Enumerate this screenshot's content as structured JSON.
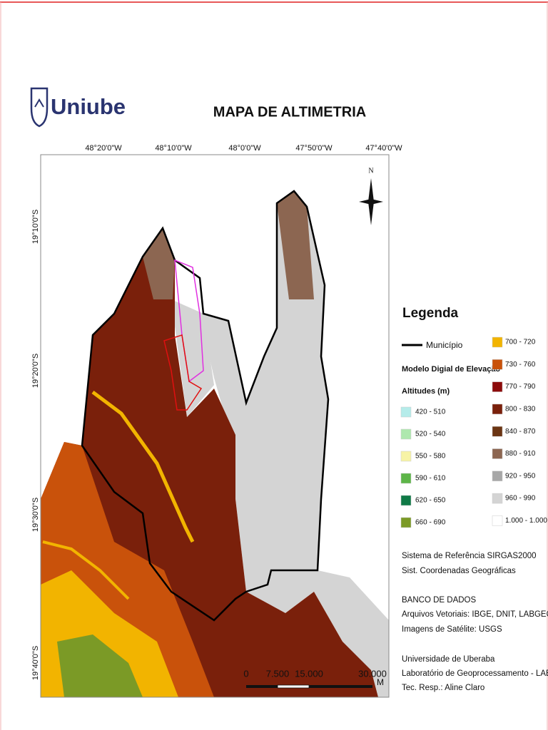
{
  "header": {
    "logo": "Uniube",
    "title": "MAPA DE ALTIMETRIA"
  },
  "map": {
    "top_labels": [
      "48°20'0\"W",
      "48°10'0\"W",
      "48°0'0\"W",
      "47°50'0\"W",
      "47°40'0\"W"
    ],
    "left_labels": [
      "19°10'0\"S",
      "19°20'0\"S",
      "19°30'0\"S",
      "19°40'0\"S"
    ],
    "north": "N",
    "scale_labels": [
      "0",
      "7.500",
      "15.000",
      "30.000"
    ],
    "scale_unit": "M"
  },
  "legend": {
    "title": "Legenda",
    "municipio": "Município",
    "model": "Modelo Digial de Elevação",
    "altitudes": "Altitudes (m)",
    "left_items": [
      {
        "label": "420 - 510",
        "color": "#b5ecea"
      },
      {
        "label": "520 - 540",
        "color": "#aee8ae"
      },
      {
        "label": "550 - 580",
        "color": "#f7f3a6"
      },
      {
        "label": "590 - 610",
        "color": "#5db548"
      },
      {
        "label": "620 - 650",
        "color": "#0f7a46"
      },
      {
        "label": "660 - 690",
        "color": "#7b9a26"
      }
    ],
    "right_items": [
      {
        "label": "700 - 720",
        "color": "#f2b400"
      },
      {
        "label": "730 - 760",
        "color": "#c9520b"
      },
      {
        "label": "770 - 790",
        "color": "#8c0b0b"
      },
      {
        "label": "800 - 830",
        "color": "#7a200b"
      },
      {
        "label": "840 - 870",
        "color": "#6b3513"
      },
      {
        "label": "880 - 910",
        "color": "#8c6651"
      },
      {
        "label": "920 - 950",
        "color": "#a7a7a7"
      },
      {
        "label": "960 - 990",
        "color": "#d4d4d4"
      },
      {
        "label": "1.000 - 1.000",
        "color": "#ffffff"
      }
    ]
  },
  "info": [
    "Sistema de Referência SIRGAS2000",
    "Sist. Coordenadas Geográficas",
    "BANCO DE DADOS",
    "Arquivos Vetoriais: IBGE, DNIT, LABGEO, UFV",
    "Imagens de Satélite: USGS",
    "Universidade de Uberaba",
    "Laboratório de Geoprocessamento - LABGEO",
    "Tec. Resp.: Aline Claro"
  ]
}
